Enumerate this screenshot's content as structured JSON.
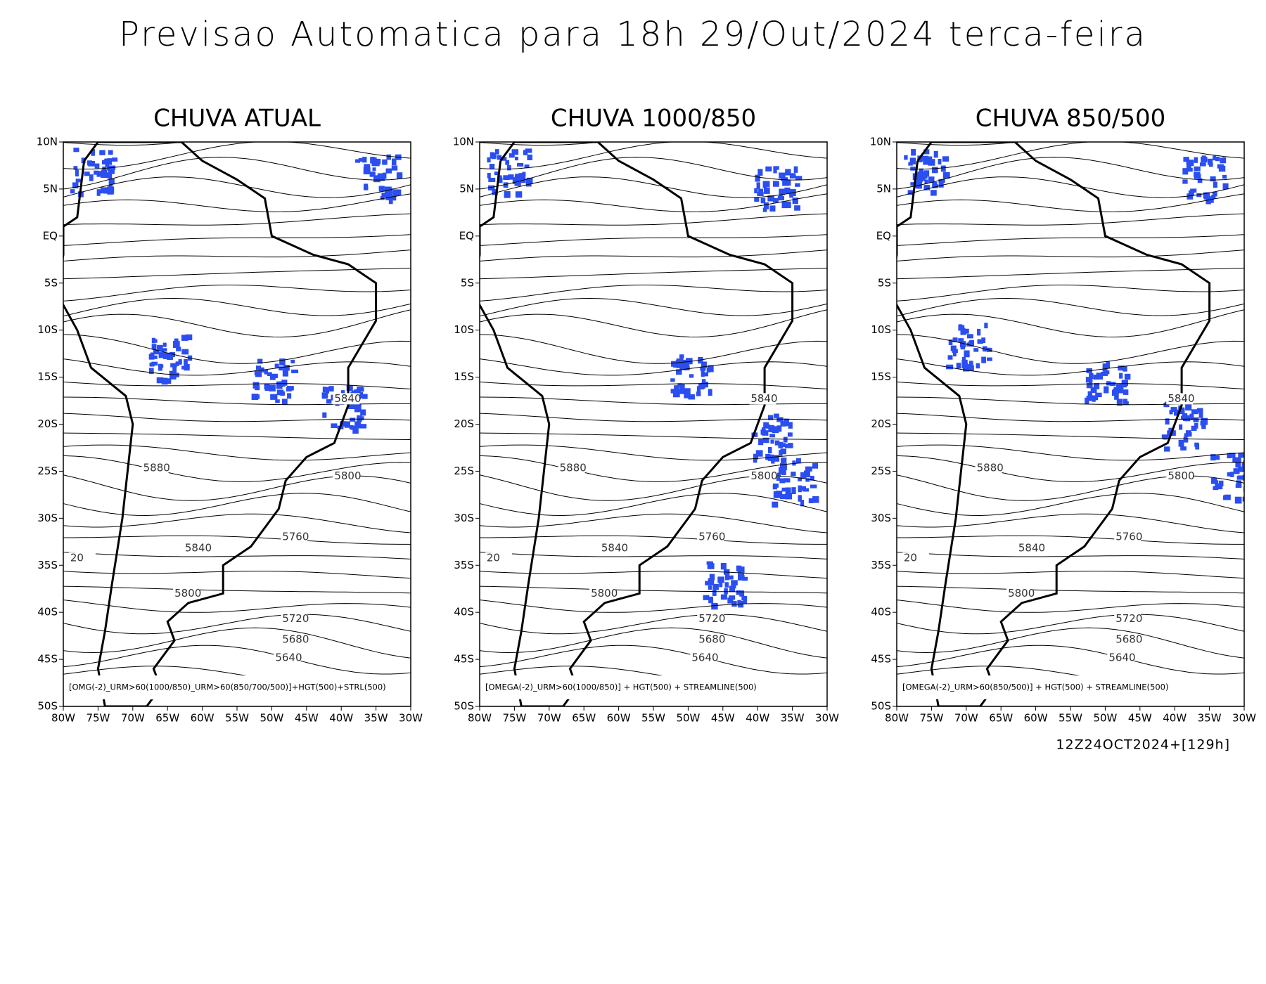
{
  "header": {
    "title": "Previsao Automatica para 18h 29/Out/2024 terca-feira"
  },
  "panels": [
    {
      "title": "CHUVA ATUAL",
      "caption": "[OMG(-2)_URM>60(1000/850)_URM>60(850/700/500)]+HGT(500)+STRL(500)"
    },
    {
      "title": "CHUVA 1000/850",
      "caption": "[OMEGA(-2)_URM>60(1000/850)] + HGT(500) + STREAMLINE(500)"
    },
    {
      "title": "CHUVA 850/500",
      "caption": "[OMEGA(-2)_URM>60(850/500)] + HGT(500) + STREAMLINE(500)"
    }
  ],
  "axes": {
    "x_labels": [
      "80W",
      "75W",
      "70W",
      "65W",
      "60W",
      "55W",
      "50W",
      "45W",
      "40W",
      "35W",
      "30W"
    ],
    "y_labels": [
      "10N",
      "5N",
      "EQ",
      "5S",
      "10S",
      "15S",
      "20S",
      "25S",
      "30S",
      "35S",
      "40S",
      "45S",
      "50S"
    ]
  },
  "contour_labels": [
    "5840",
    "5880",
    "5800",
    "5760",
    "5840",
    "20",
    "5800",
    "5720",
    "5680",
    "5640"
  ],
  "footer": "12Z24OCT2024+[129h]"
}
